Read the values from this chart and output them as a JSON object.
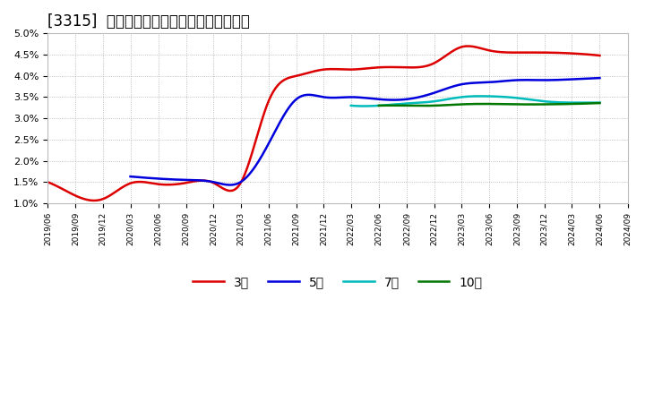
{
  "title": "[3315]  経常利益マージンの標準偏差の推移",
  "title_fontsize": 12,
  "background_color": "#ffffff",
  "plot_bg_color": "#ffffff",
  "grid_color": "#999999",
  "ylim": [
    0.01,
    0.05
  ],
  "yticks": [
    0.01,
    0.015,
    0.02,
    0.025,
    0.03,
    0.035,
    0.04,
    0.045,
    0.05
  ],
  "ytick_labels": [
    "1.0%",
    "1.5%",
    "2.0%",
    "2.5%",
    "3.0%",
    "3.5%",
    "4.0%",
    "4.5%",
    "5.0%"
  ],
  "legend_entries": [
    "3年",
    "5年",
    "7年",
    "10年"
  ],
  "legend_colors": [
    "#dd0000",
    "#0000dd",
    "#00bbbb",
    "#007700"
  ],
  "series": {
    "3yr": {
      "color": "#dd0000",
      "points": [
        [
          "2019-06",
          0.015
        ],
        [
          "2019-09",
          0.0118
        ],
        [
          "2019-12",
          0.011
        ],
        [
          "2020-03",
          0.0147
        ],
        [
          "2020-06",
          0.0145
        ],
        [
          "2020-09",
          0.0148
        ],
        [
          "2020-12",
          0.0148
        ],
        [
          "2021-03",
          0.0148
        ],
        [
          "2021-06",
          0.034
        ],
        [
          "2021-09",
          0.04
        ],
        [
          "2021-12",
          0.0415
        ],
        [
          "2022-03",
          0.0415
        ],
        [
          "2022-06",
          0.042
        ],
        [
          "2022-09",
          0.042
        ],
        [
          "2022-12",
          0.043
        ],
        [
          "2023-03",
          0.0468
        ],
        [
          "2023-06",
          0.046
        ],
        [
          "2023-09",
          0.0455
        ],
        [
          "2023-12",
          0.0455
        ],
        [
          "2024-03",
          0.0453
        ],
        [
          "2024-06",
          0.0448
        ]
      ]
    },
    "5yr": {
      "color": "#0000dd",
      "points": [
        [
          "2020-03",
          0.0163
        ],
        [
          "2020-06",
          0.0158
        ],
        [
          "2020-09",
          0.0155
        ],
        [
          "2020-12",
          0.015
        ],
        [
          "2021-03",
          0.015
        ],
        [
          "2021-06",
          0.024
        ],
        [
          "2021-09",
          0.0345
        ],
        [
          "2021-12",
          0.035
        ],
        [
          "2022-03",
          0.035
        ],
        [
          "2022-06",
          0.0345
        ],
        [
          "2022-09",
          0.0345
        ],
        [
          "2022-12",
          0.036
        ],
        [
          "2023-03",
          0.038
        ],
        [
          "2023-06",
          0.0385
        ],
        [
          "2023-09",
          0.039
        ],
        [
          "2023-12",
          0.039
        ],
        [
          "2024-03",
          0.0392
        ],
        [
          "2024-06",
          0.0395
        ]
      ]
    },
    "7yr": {
      "color": "#00bbbb",
      "points": [
        [
          "2022-03",
          0.033
        ],
        [
          "2022-06",
          0.033
        ],
        [
          "2022-09",
          0.0335
        ],
        [
          "2022-12",
          0.034
        ],
        [
          "2023-03",
          0.035
        ],
        [
          "2023-06",
          0.0352
        ],
        [
          "2023-09",
          0.0348
        ],
        [
          "2023-12",
          0.034
        ],
        [
          "2024-03",
          0.0337
        ],
        [
          "2024-06",
          0.0337
        ]
      ]
    },
    "10yr": {
      "color": "#007700",
      "points": [
        [
          "2022-06",
          0.033
        ],
        [
          "2022-09",
          0.033
        ],
        [
          "2022-12",
          0.033
        ],
        [
          "2023-03",
          0.0333
        ],
        [
          "2023-06",
          0.0334
        ],
        [
          "2023-09",
          0.0333
        ],
        [
          "2023-12",
          0.0333
        ],
        [
          "2024-03",
          0.0334
        ],
        [
          "2024-06",
          0.0336
        ]
      ]
    }
  },
  "xtick_labels": [
    "2019/06",
    "2019/09",
    "2019/12",
    "2020/03",
    "2020/06",
    "2020/09",
    "2020/12",
    "2021/03",
    "2021/06",
    "2021/09",
    "2021/12",
    "2022/03",
    "2022/06",
    "2022/09",
    "2022/12",
    "2023/03",
    "2023/06",
    "2023/09",
    "2023/12",
    "2024/03",
    "2024/06",
    "2024/09"
  ]
}
